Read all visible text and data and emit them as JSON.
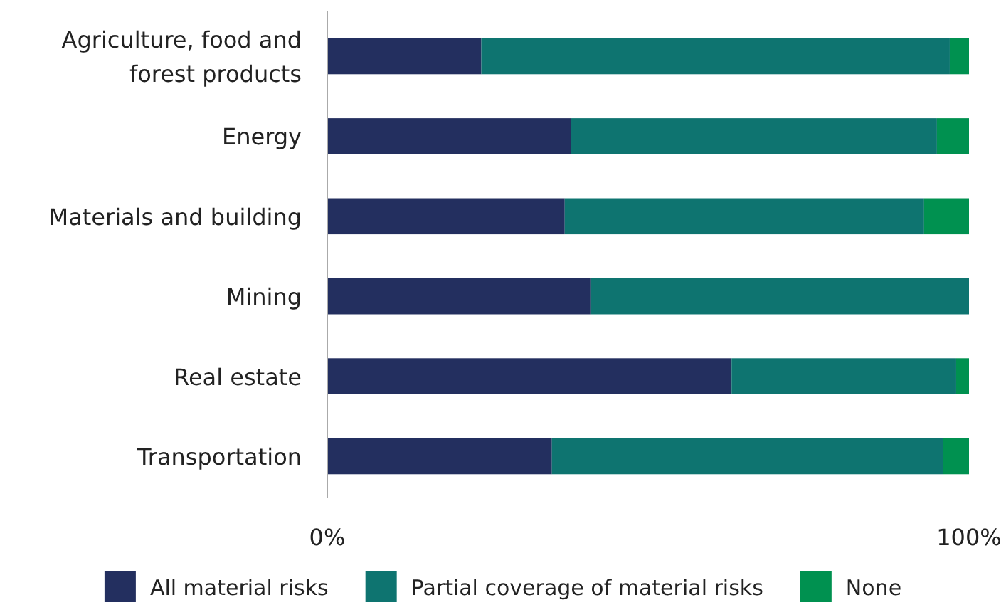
{
  "chart_data": {
    "type": "bar",
    "orientation": "horizontal",
    "stacked": true,
    "categories": [
      "Agriculture, food and forest products",
      "Energy",
      "Materials and building",
      "Mining",
      "Real estate",
      "Transportation"
    ],
    "series": [
      {
        "name": "All material risks",
        "color": "#232f5f",
        "values": [
          24,
          38,
          37,
          41,
          63,
          35
        ]
      },
      {
        "name": "Partial coverage of material risks",
        "color": "#0e7470",
        "values": [
          73,
          57,
          56,
          59,
          35,
          61
        ]
      },
      {
        "name": "None",
        "color": "#009150",
        "values": [
          3,
          5,
          7,
          0,
          2,
          4
        ]
      }
    ],
    "xlim": [
      0,
      100
    ],
    "xticks": [
      {
        "value": 0,
        "label": "0%"
      },
      {
        "value": 100,
        "label": "100%"
      }
    ],
    "legend": "bottom"
  }
}
